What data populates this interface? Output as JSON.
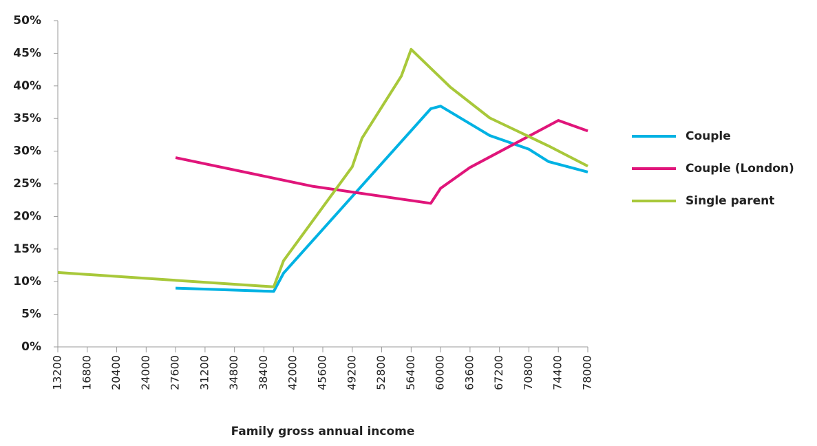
{
  "chart_data": {
    "type": "line",
    "xlabel": "Family gross annual income",
    "xlim": [
      13200,
      78000
    ],
    "xticks": [
      13200,
      16800,
      20400,
      24000,
      27600,
      31200,
      34800,
      38400,
      42000,
      45600,
      49200,
      52800,
      56400,
      60000,
      63600,
      67200,
      70800,
      74400,
      78000
    ],
    "ylim": [
      0,
      50
    ],
    "yticks": [
      {
        "value": 0,
        "label": "0%"
      },
      {
        "value": 5,
        "label": "5%"
      },
      {
        "value": 10,
        "label": "10%"
      },
      {
        "value": 15,
        "label": "15%"
      },
      {
        "value": 20,
        "label": "20%"
      },
      {
        "value": 25,
        "label": "25%"
      },
      {
        "value": 30,
        "label": "30%"
      },
      {
        "value": 35,
        "label": "35%"
      },
      {
        "value": 40,
        "label": "40%"
      },
      {
        "value": 45,
        "label": "45%"
      },
      {
        "value": 50,
        "label": "50%"
      }
    ],
    "legend": "right",
    "series": [
      {
        "name": "Couple",
        "color": "#00b2e3",
        "x": [
          27600,
          39600,
          40800,
          58800,
          60000,
          64800,
          66000,
          70800,
          73200,
          78000
        ],
        "values": [
          9.0,
          8.5,
          11.3,
          36.5,
          36.9,
          33.3,
          32.4,
          30.3,
          28.4,
          26.8
        ]
      },
      {
        "name": "Couple (London)",
        "color": "#e0157a",
        "x": [
          27600,
          44400,
          58800,
          60000,
          63600,
          74400,
          78000
        ],
        "values": [
          29.0,
          24.6,
          22.0,
          24.3,
          27.5,
          34.7,
          33.1
        ]
      },
      {
        "name": "Single parent",
        "color": "#a8c83a",
        "x": [
          13200,
          39600,
          40800,
          49200,
          50400,
          55200,
          56400,
          61200,
          66000,
          73200,
          78000
        ],
        "values": [
          11.4,
          9.2,
          13.2,
          27.6,
          32.0,
          41.5,
          45.6,
          39.8,
          35.1,
          30.8,
          27.7
        ]
      }
    ]
  }
}
